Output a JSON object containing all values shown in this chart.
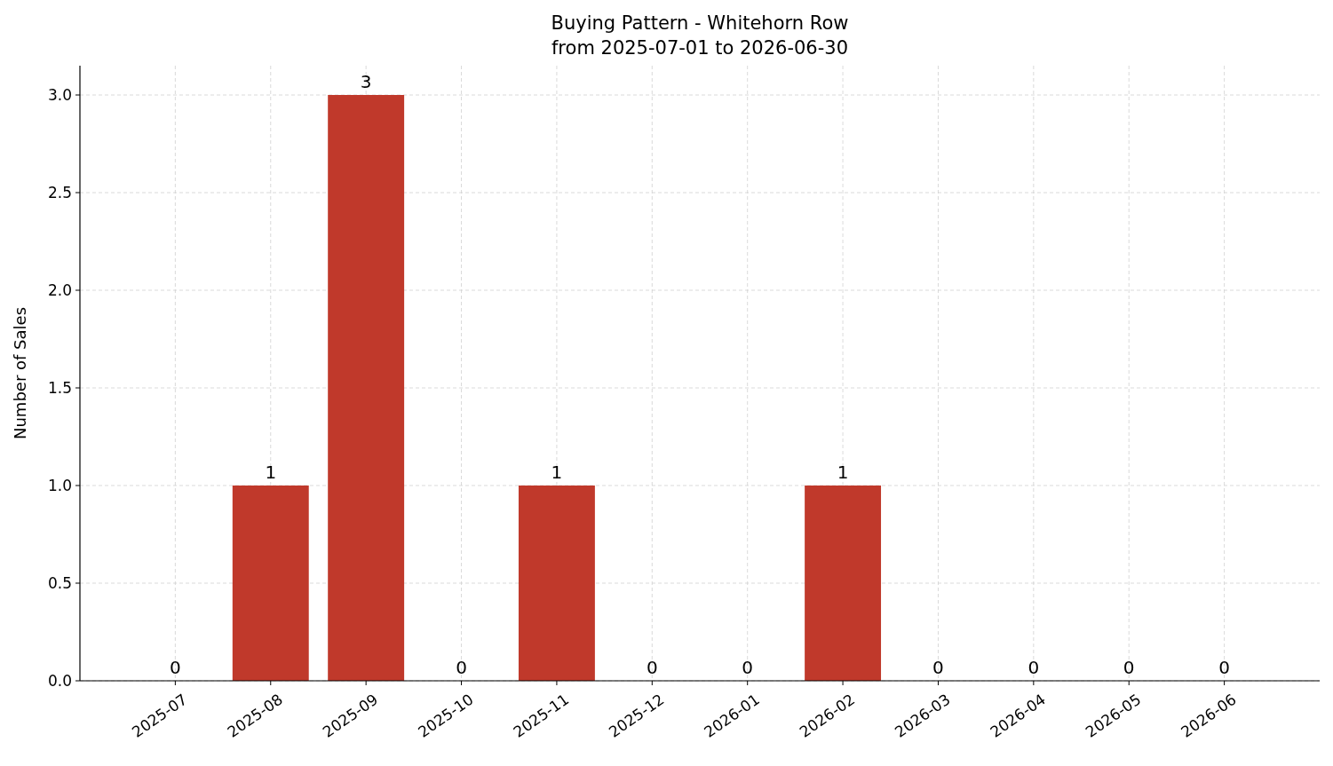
{
  "chart_data": {
    "type": "bar",
    "title": "Buying Pattern - Whitehorn Row",
    "subtitle": "from 2025-07-01 to 2026-06-30",
    "ylabel": "Number of Sales",
    "categories": [
      "2025-07",
      "2025-08",
      "2025-09",
      "2025-10",
      "2025-11",
      "2025-12",
      "2026-01",
      "2026-02",
      "2026-03",
      "2026-04",
      "2026-05",
      "2026-06"
    ],
    "values": [
      0,
      1,
      3,
      0,
      1,
      0,
      0,
      1,
      0,
      0,
      0,
      0
    ],
    "color": "#c0392b",
    "ylim": [
      0,
      3.15
    ],
    "yticks": [
      {
        "value": 0,
        "label": "0.0"
      },
      {
        "value": 0.5,
        "label": "0.5"
      },
      {
        "value": 1,
        "label": "1.0"
      },
      {
        "value": 1.5,
        "label": "1.5"
      },
      {
        "value": 2,
        "label": "2.0"
      },
      {
        "value": 2.5,
        "label": "2.5"
      },
      {
        "value": 3,
        "label": "3.0"
      }
    ],
    "grid": true,
    "data_labels": true
  }
}
